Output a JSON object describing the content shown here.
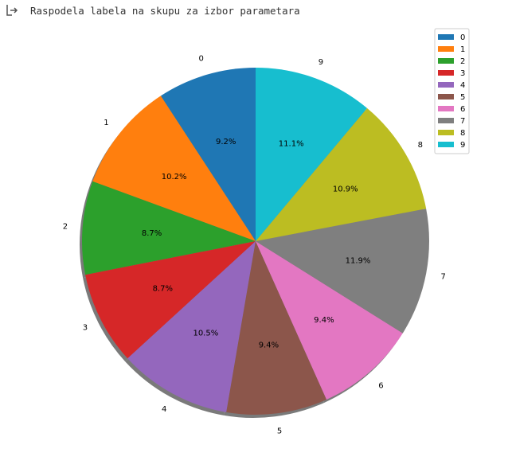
{
  "output": {
    "icon": "output-arrow-icon",
    "title": "Raspodela labela na skupu za izbor parametara"
  },
  "chart_data": {
    "type": "pie",
    "title": "",
    "start_angle_deg": 90,
    "direction": "counterclockwise",
    "shadow": true,
    "legend_position": "top-right",
    "categories": [
      "0",
      "1",
      "2",
      "3",
      "4",
      "5",
      "6",
      "7",
      "8",
      "9"
    ],
    "values": [
      9.2,
      10.2,
      8.7,
      8.7,
      10.5,
      9.4,
      9.4,
      11.9,
      10.9,
      11.1
    ],
    "value_labels": [
      "9.2%",
      "10.2%",
      "8.7%",
      "8.7%",
      "10.5%",
      "9.4%",
      "9.4%",
      "11.9%",
      "10.9%",
      "11.1%"
    ],
    "colors": [
      "#1f77b4",
      "#ff7f0e",
      "#2ca02c",
      "#d62728",
      "#9467bd",
      "#8c564b",
      "#e377c2",
      "#7f7f7f",
      "#bcbd22",
      "#17becf"
    ]
  }
}
